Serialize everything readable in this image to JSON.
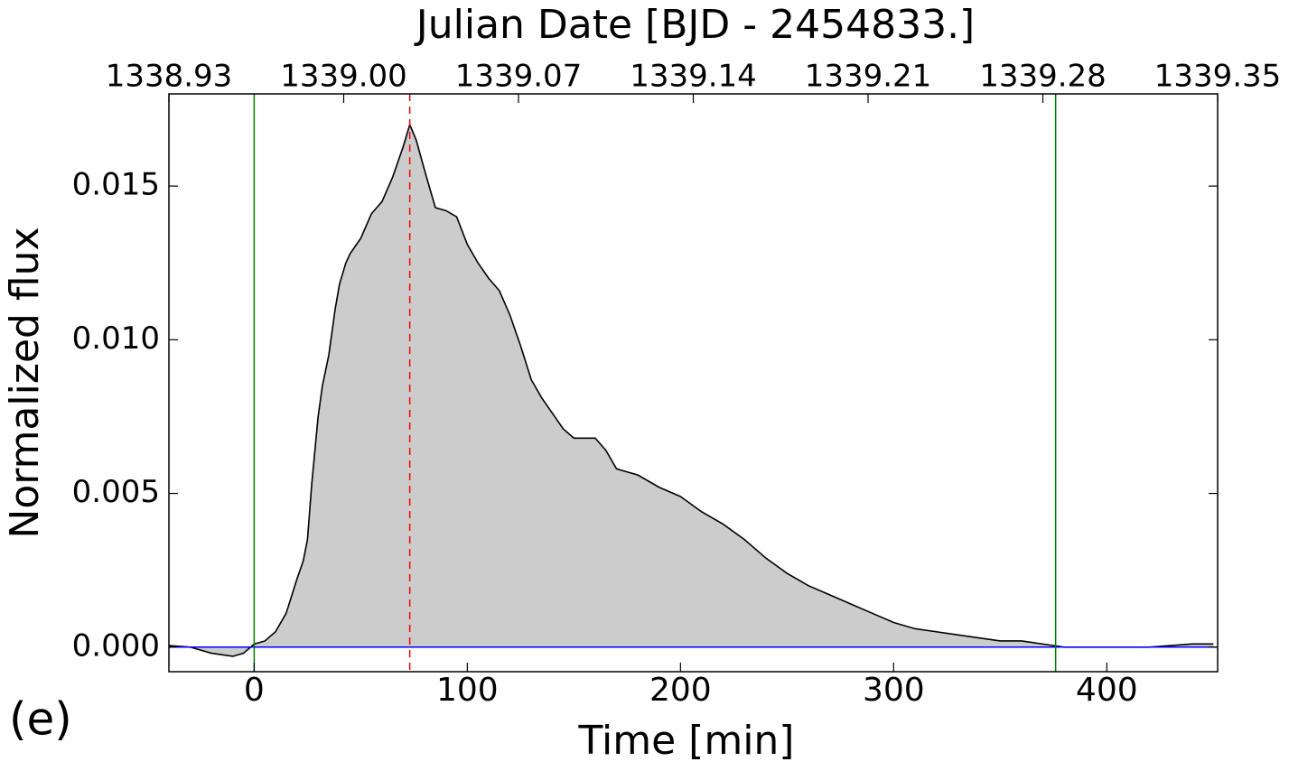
{
  "chart_data": {
    "type": "line",
    "title": "Julian Date [BJD - 2454833.]",
    "xlabel": "Time [min]",
    "ylabel": "Normalized flux",
    "annotation": "(e)",
    "x": [
      -40,
      -30,
      -20,
      -10,
      -5,
      0,
      5,
      10,
      15,
      20,
      23,
      25,
      27,
      30,
      32,
      35,
      38,
      40,
      43,
      45,
      50,
      55,
      60,
      65,
      70,
      73,
      76,
      80,
      85,
      90,
      95,
      100,
      105,
      110,
      115,
      120,
      125,
      130,
      135,
      140,
      145,
      150,
      160,
      165,
      170,
      175,
      180,
      190,
      200,
      210,
      220,
      230,
      240,
      250,
      260,
      270,
      280,
      290,
      300,
      310,
      320,
      330,
      340,
      350,
      360,
      370,
      380,
      390,
      400,
      420,
      440,
      450
    ],
    "series": [
      {
        "name": "Normalized flux",
        "color": "#000000",
        "fill": "#cccccc",
        "values": [
          5e-05,
          0.0,
          -0.0002,
          -0.0003,
          -0.0002,
          0.0001,
          0.0002,
          0.0005,
          0.0011,
          0.0022,
          0.0028,
          0.0035,
          0.0053,
          0.0075,
          0.0085,
          0.0095,
          0.011,
          0.0118,
          0.0125,
          0.0128,
          0.0133,
          0.0141,
          0.0145,
          0.0153,
          0.0163,
          0.017,
          0.0165,
          0.0155,
          0.0143,
          0.0142,
          0.014,
          0.0131,
          0.0125,
          0.012,
          0.0116,
          0.0108,
          0.0098,
          0.0087,
          0.0081,
          0.0076,
          0.0071,
          0.0068,
          0.0068,
          0.0064,
          0.0058,
          0.0057,
          0.0056,
          0.0052,
          0.0049,
          0.0044,
          0.004,
          0.0035,
          0.0029,
          0.0024,
          0.002,
          0.0017,
          0.0014,
          0.0011,
          0.0008,
          0.0006,
          0.0005,
          0.0004,
          0.0003,
          0.0002,
          0.0002,
          0.0001,
          0.0,
          0.0,
          0.0,
          0.0,
          0.0001,
          0.0001
        ]
      }
    ],
    "xlim": [
      -40,
      452
    ],
    "xticks": [
      0,
      100,
      200,
      300,
      400
    ],
    "ylim": [
      -0.0008,
      0.018
    ],
    "yticks": [
      {
        "value": 0,
        "label": "0.000"
      },
      0.005,
      {
        "value": 0.01,
        "label": "0.010"
      },
      0.015
    ],
    "x2lim": [
      1338.93,
      1339.35
    ],
    "x2ticks": [
      1338.93,
      {
        "value": 1339,
        "label": "1339.00"
      },
      1339.07,
      1339.14,
      1339.21,
      1339.28,
      1339.35
    ],
    "vlines": [
      {
        "x": 0,
        "color": "#008000",
        "style": "solid"
      },
      {
        "x": 73,
        "color": "#ff0000",
        "style": "dashed"
      },
      {
        "x": 376,
        "color": "#008000",
        "style": "solid"
      }
    ],
    "hlines": [
      {
        "y": 0,
        "color": "#0000ff",
        "style": "solid"
      }
    ]
  }
}
